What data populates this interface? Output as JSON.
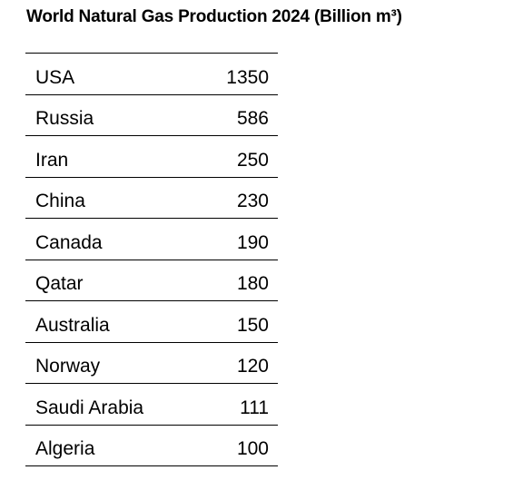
{
  "header": {
    "title": "World Natural Gas Production 2024 (Billion m³)"
  },
  "table": {
    "rows": [
      [
        "USA",
        1350
      ],
      [
        "Russia",
        586
      ],
      [
        "Iran",
        250
      ],
      [
        "China",
        230
      ],
      [
        "Canada",
        190
      ],
      [
        "Qatar",
        180
      ],
      [
        "Australia",
        150
      ],
      [
        "Norway",
        120
      ],
      [
        "Saudi Arabia",
        111
      ],
      [
        "Algeria",
        100
      ]
    ]
  }
}
